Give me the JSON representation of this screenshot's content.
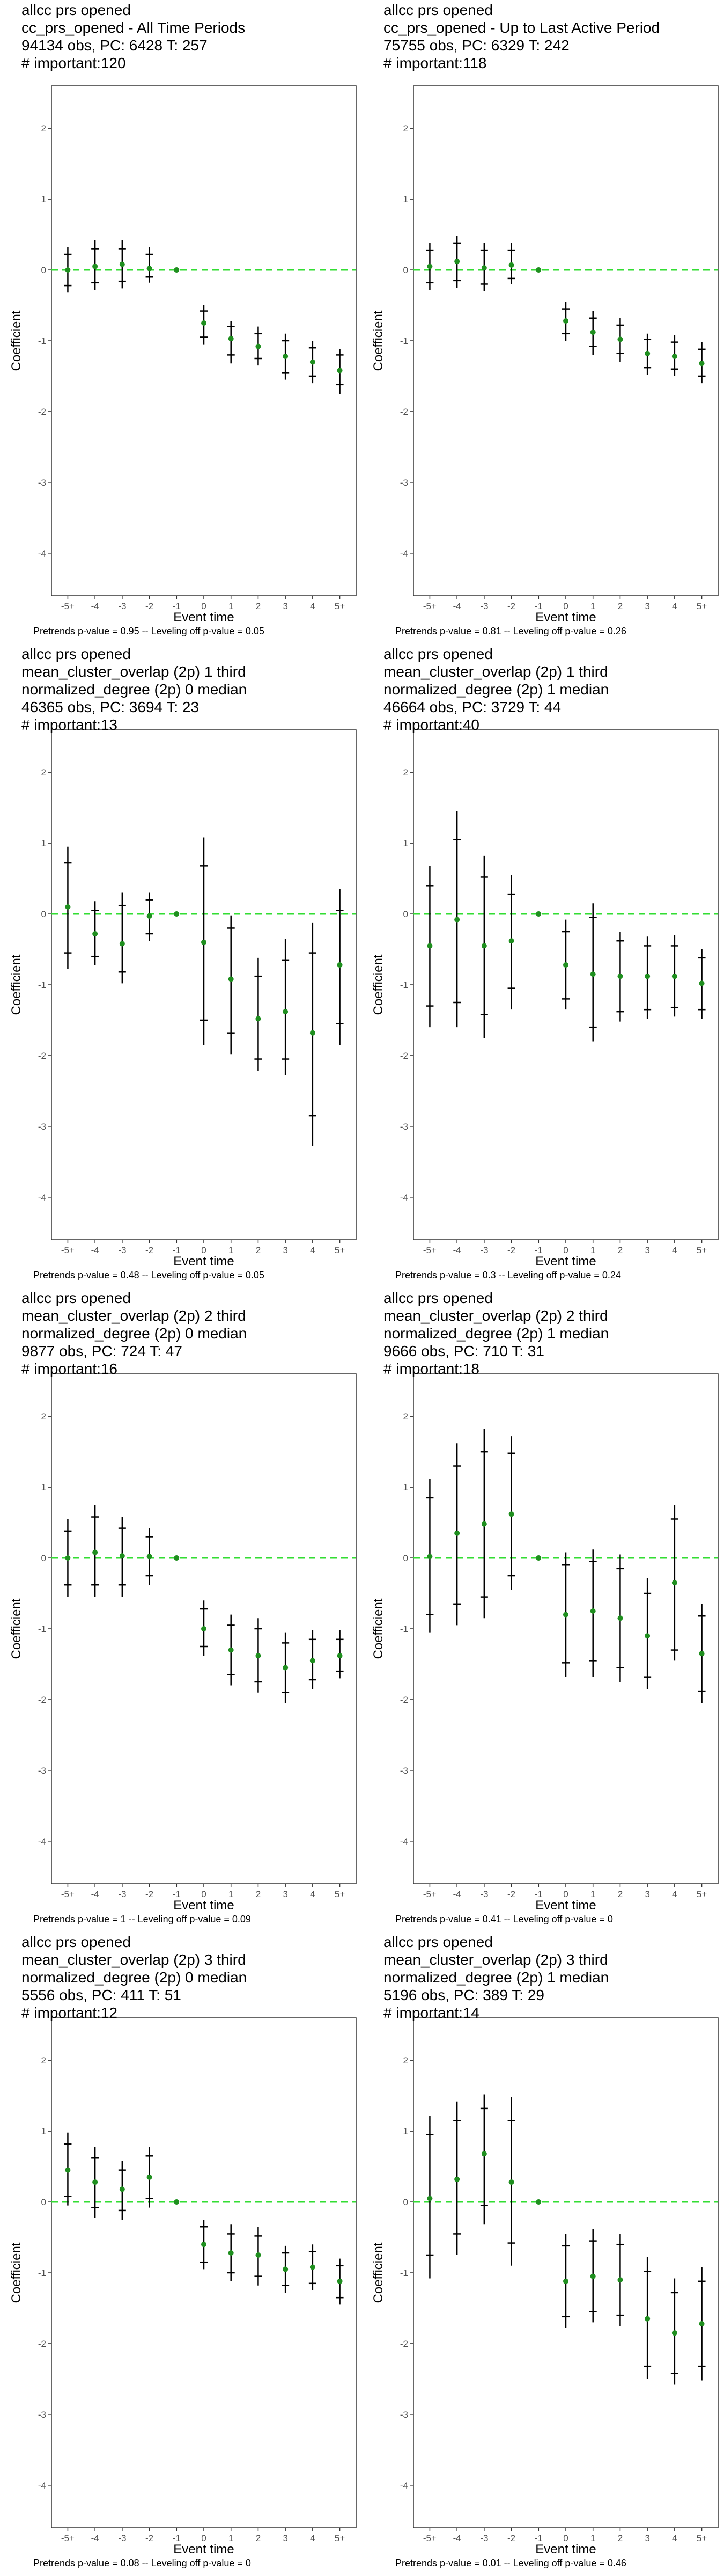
{
  "colors": {
    "point": "#1f8f1f",
    "zero_line": "#33dd33",
    "error_bar": "#000000",
    "axis": "#333333",
    "tick_label": "#4d4d4d"
  },
  "chart_data": [
    {
      "type": "scatter",
      "subtype": "event-study coefficient plot with confidence intervals",
      "title_lines": [
        "allcc prs opened",
        "cc_prs_opened - All Time Periods",
        "94134 obs, PC: 6428 T: 257",
        "# important:120"
      ],
      "xlabel": "Event time",
      "ylabel": "Coefficient",
      "categories": [
        "-5+",
        "-4",
        "-3",
        "-2",
        "-1",
        "0",
        "1",
        "2",
        "3",
        "4",
        "5+"
      ],
      "ylim": [
        -4.6,
        2.6
      ],
      "yticks": [
        -4,
        -3,
        -2,
        -1,
        0,
        1,
        2
      ],
      "reference_line": 0,
      "grid": false,
      "values": [
        0.0,
        0.05,
        0.08,
        0.02,
        0.0,
        -0.75,
        -0.97,
        -1.08,
        -1.22,
        -1.3,
        -1.42
      ],
      "ci_outer": [
        [
          -0.32,
          0.32
        ],
        [
          -0.28,
          0.42
        ],
        [
          -0.26,
          0.42
        ],
        [
          -0.18,
          0.32
        ],
        [
          0.0,
          0.0
        ],
        [
          -1.05,
          -0.5
        ],
        [
          -1.32,
          -0.72
        ],
        [
          -1.35,
          -0.8
        ],
        [
          -1.55,
          -0.9
        ],
        [
          -1.6,
          -1.0
        ],
        [
          -1.75,
          -1.12
        ]
      ],
      "ci_inner": [
        [
          -0.22,
          0.22
        ],
        [
          -0.18,
          0.3
        ],
        [
          -0.16,
          0.3
        ],
        [
          -0.1,
          0.22
        ],
        [
          0.0,
          0.0
        ],
        [
          -0.95,
          -0.58
        ],
        [
          -1.2,
          -0.8
        ],
        [
          -1.25,
          -0.9
        ],
        [
          -1.45,
          -1.0
        ],
        [
          -1.5,
          -1.1
        ],
        [
          -1.62,
          -1.2
        ]
      ],
      "caption": "Pretrends p-value = 0.95 -- Leveling off p-value = 0.05"
    },
    {
      "type": "scatter",
      "subtype": "event-study coefficient plot with confidence intervals",
      "title_lines": [
        "allcc prs opened",
        "cc_prs_opened - Up to Last Active Period",
        "75755 obs, PC: 6329 T: 242",
        "# important:118"
      ],
      "xlabel": "Event time",
      "ylabel": "Coefficient",
      "categories": [
        "-5+",
        "-4",
        "-3",
        "-2",
        "-1",
        "0",
        "1",
        "2",
        "3",
        "4",
        "5+"
      ],
      "ylim": [
        -4.6,
        2.6
      ],
      "yticks": [
        -4,
        -3,
        -2,
        -1,
        0,
        1,
        2
      ],
      "reference_line": 0,
      "grid": false,
      "values": [
        0.05,
        0.12,
        0.03,
        0.07,
        0.0,
        -0.72,
        -0.88,
        -0.98,
        -1.18,
        -1.22,
        -1.32
      ],
      "ci_outer": [
        [
          -0.28,
          0.38
        ],
        [
          -0.25,
          0.48
        ],
        [
          -0.3,
          0.38
        ],
        [
          -0.2,
          0.38
        ],
        [
          0.0,
          0.0
        ],
        [
          -1.0,
          -0.45
        ],
        [
          -1.2,
          -0.58
        ],
        [
          -1.3,
          -0.68
        ],
        [
          -1.48,
          -0.9
        ],
        [
          -1.5,
          -0.92
        ],
        [
          -1.6,
          -1.02
        ]
      ],
      "ci_inner": [
        [
          -0.18,
          0.28
        ],
        [
          -0.15,
          0.38
        ],
        [
          -0.2,
          0.28
        ],
        [
          -0.12,
          0.28
        ],
        [
          0.0,
          0.0
        ],
        [
          -0.9,
          -0.55
        ],
        [
          -1.08,
          -0.68
        ],
        [
          -1.18,
          -0.78
        ],
        [
          -1.38,
          -0.98
        ],
        [
          -1.4,
          -1.02
        ],
        [
          -1.5,
          -1.12
        ]
      ],
      "caption": "Pretrends p-value = 0.81 -- Leveling off p-value = 0.26"
    },
    {
      "type": "scatter",
      "subtype": "event-study coefficient plot with confidence intervals",
      "title_lines": [
        "allcc prs opened",
        "mean_cluster_overlap (2p) 1 third",
        "normalized_degree (2p) 0 median",
        "46365 obs, PC: 3694 T: 23",
        "# important:13"
      ],
      "xlabel": "Event time",
      "ylabel": "Coefficient",
      "categories": [
        "-5+",
        "-4",
        "-3",
        "-2",
        "-1",
        "0",
        "1",
        "2",
        "3",
        "4",
        "5+"
      ],
      "ylim": [
        -4.6,
        2.6
      ],
      "yticks": [
        -4,
        -3,
        -2,
        -1,
        0,
        1,
        2
      ],
      "reference_line": 0,
      "grid": false,
      "values": [
        0.1,
        -0.28,
        -0.42,
        -0.03,
        0.0,
        -0.4,
        -0.92,
        -1.48,
        -1.38,
        -1.68,
        -0.72
      ],
      "ci_outer": [
        [
          -0.78,
          0.95
        ],
        [
          -0.72,
          0.18
        ],
        [
          -0.98,
          0.3
        ],
        [
          -0.38,
          0.3
        ],
        [
          0.0,
          0.0
        ],
        [
          -1.85,
          1.08
        ],
        [
          -1.98,
          -0.02
        ],
        [
          -2.22,
          -0.62
        ],
        [
          -2.28,
          -0.35
        ],
        [
          -3.28,
          -0.12
        ],
        [
          -1.85,
          0.35
        ]
      ],
      "ci_inner": [
        [
          -0.55,
          0.72
        ],
        [
          -0.6,
          0.05
        ],
        [
          -0.82,
          0.12
        ],
        [
          -0.28,
          0.2
        ],
        [
          0.0,
          0.0
        ],
        [
          -1.5,
          0.68
        ],
        [
          -1.68,
          -0.2
        ],
        [
          -2.05,
          -0.88
        ],
        [
          -2.05,
          -0.65
        ],
        [
          -2.85,
          -0.55
        ],
        [
          -1.55,
          0.05
        ]
      ],
      "caption": "Pretrends p-value = 0.48 -- Leveling off p-value = 0.05"
    },
    {
      "type": "scatter",
      "subtype": "event-study coefficient plot with confidence intervals",
      "title_lines": [
        "allcc prs opened",
        "mean_cluster_overlap (2p) 1 third",
        "normalized_degree (2p) 1 median",
        "46664 obs, PC: 3729 T: 44",
        "# important:40"
      ],
      "xlabel": "Event time",
      "ylabel": "Coefficient",
      "categories": [
        "-5+",
        "-4",
        "-3",
        "-2",
        "-1",
        "0",
        "1",
        "2",
        "3",
        "4",
        "5+"
      ],
      "ylim": [
        -4.6,
        2.6
      ],
      "yticks": [
        -4,
        -3,
        -2,
        -1,
        0,
        1,
        2
      ],
      "reference_line": 0,
      "grid": false,
      "values": [
        -0.45,
        -0.08,
        -0.45,
        -0.38,
        0.0,
        -0.72,
        -0.85,
        -0.88,
        -0.88,
        -0.88,
        -0.98
      ],
      "ci_outer": [
        [
          -1.6,
          0.68
        ],
        [
          -1.6,
          1.45
        ],
        [
          -1.75,
          0.82
        ],
        [
          -1.35,
          0.55
        ],
        [
          0.0,
          0.0
        ],
        [
          -1.35,
          -0.08
        ],
        [
          -1.8,
          0.15
        ],
        [
          -1.52,
          -0.25
        ],
        [
          -1.48,
          -0.32
        ],
        [
          -1.45,
          -0.3
        ],
        [
          -1.48,
          -0.5
        ]
      ],
      "ci_inner": [
        [
          -1.3,
          0.4
        ],
        [
          -1.25,
          1.05
        ],
        [
          -1.42,
          0.52
        ],
        [
          -1.05,
          0.28
        ],
        [
          0.0,
          0.0
        ],
        [
          -1.2,
          -0.25
        ],
        [
          -1.6,
          -0.05
        ],
        [
          -1.38,
          -0.38
        ],
        [
          -1.35,
          -0.45
        ],
        [
          -1.32,
          -0.45
        ],
        [
          -1.35,
          -0.62
        ]
      ],
      "caption": "Pretrends p-value = 0.3 -- Leveling off p-value = 0.24"
    },
    {
      "type": "scatter",
      "subtype": "event-study coefficient plot with confidence intervals",
      "title_lines": [
        "allcc prs opened",
        "mean_cluster_overlap (2p) 2 third",
        "normalized_degree (2p) 0 median",
        "9877 obs, PC: 724 T: 47",
        "# important:16"
      ],
      "xlabel": "Event time",
      "ylabel": "Coefficient",
      "categories": [
        "-5+",
        "-4",
        "-3",
        "-2",
        "-1",
        "0",
        "1",
        "2",
        "3",
        "4",
        "5+"
      ],
      "ylim": [
        -4.6,
        2.6
      ],
      "yticks": [
        -4,
        -3,
        -2,
        -1,
        0,
        1,
        2
      ],
      "reference_line": 0,
      "grid": false,
      "values": [
        0.0,
        0.08,
        0.03,
        0.02,
        0.0,
        -1.0,
        -1.3,
        -1.38,
        -1.55,
        -1.45,
        -1.38
      ],
      "ci_outer": [
        [
          -0.55,
          0.55
        ],
        [
          -0.55,
          0.75
        ],
        [
          -0.55,
          0.58
        ],
        [
          -0.38,
          0.42
        ],
        [
          0.0,
          0.0
        ],
        [
          -1.38,
          -0.6
        ],
        [
          -1.8,
          -0.8
        ],
        [
          -1.9,
          -0.85
        ],
        [
          -2.05,
          -1.05
        ],
        [
          -1.85,
          -1.02
        ],
        [
          -1.7,
          -1.02
        ]
      ],
      "ci_inner": [
        [
          -0.38,
          0.38
        ],
        [
          -0.38,
          0.58
        ],
        [
          -0.38,
          0.42
        ],
        [
          -0.25,
          0.3
        ],
        [
          0.0,
          0.0
        ],
        [
          -1.25,
          -0.72
        ],
        [
          -1.65,
          -0.95
        ],
        [
          -1.75,
          -1.0
        ],
        [
          -1.9,
          -1.2
        ],
        [
          -1.72,
          -1.15
        ],
        [
          -1.6,
          -1.15
        ]
      ],
      "caption": "Pretrends p-value = 1 -- Leveling off p-value = 0.09"
    },
    {
      "type": "scatter",
      "subtype": "event-study coefficient plot with confidence intervals",
      "title_lines": [
        "allcc prs opened",
        "mean_cluster_overlap (2p) 2 third",
        "normalized_degree (2p) 1 median",
        "9666 obs, PC: 710 T: 31",
        "# important:18"
      ],
      "xlabel": "Event time",
      "ylabel": "Coefficient",
      "categories": [
        "-5+",
        "-4",
        "-3",
        "-2",
        "-1",
        "0",
        "1",
        "2",
        "3",
        "4",
        "5+"
      ],
      "ylim": [
        -4.6,
        2.6
      ],
      "yticks": [
        -4,
        -3,
        -2,
        -1,
        0,
        1,
        2
      ],
      "reference_line": 0,
      "grid": false,
      "values": [
        0.02,
        0.35,
        0.48,
        0.62,
        0.0,
        -0.8,
        -0.75,
        -0.85,
        -1.1,
        -0.35,
        -1.35
      ],
      "ci_outer": [
        [
          -1.05,
          1.12
        ],
        [
          -0.95,
          1.62
        ],
        [
          -0.85,
          1.82
        ],
        [
          -0.45,
          1.72
        ],
        [
          0.0,
          0.0
        ],
        [
          -1.68,
          0.08
        ],
        [
          -1.68,
          0.12
        ],
        [
          -1.75,
          0.05
        ],
        [
          -1.85,
          -0.28
        ],
        [
          -1.45,
          0.75
        ],
        [
          -2.05,
          -0.65
        ]
      ],
      "ci_inner": [
        [
          -0.8,
          0.85
        ],
        [
          -0.65,
          1.3
        ],
        [
          -0.55,
          1.5
        ],
        [
          -0.25,
          1.48
        ],
        [
          0.0,
          0.0
        ],
        [
          -1.48,
          -0.1
        ],
        [
          -1.45,
          -0.05
        ],
        [
          -1.55,
          -0.15
        ],
        [
          -1.68,
          -0.5
        ],
        [
          -1.3,
          0.55
        ],
        [
          -1.88,
          -0.82
        ]
      ],
      "caption": "Pretrends p-value = 0.41 -- Leveling off p-value = 0"
    },
    {
      "type": "scatter",
      "subtype": "event-study coefficient plot with confidence intervals",
      "title_lines": [
        "allcc prs opened",
        "mean_cluster_overlap (2p) 3 third",
        "normalized_degree (2p) 0 median",
        "5556 obs, PC: 411 T: 51",
        "# important:12"
      ],
      "xlabel": "Event time",
      "ylabel": "Coefficient",
      "categories": [
        "-5+",
        "-4",
        "-3",
        "-2",
        "-1",
        "0",
        "1",
        "2",
        "3",
        "4",
        "5+"
      ],
      "ylim": [
        -4.6,
        2.6
      ],
      "yticks": [
        -4,
        -3,
        -2,
        -1,
        0,
        1,
        2
      ],
      "reference_line": 0,
      "grid": false,
      "values": [
        0.45,
        0.28,
        0.18,
        0.35,
        0.0,
        -0.6,
        -0.72,
        -0.75,
        -0.95,
        -0.92,
        -1.12
      ],
      "ci_outer": [
        [
          -0.05,
          0.98
        ],
        [
          -0.22,
          0.78
        ],
        [
          -0.25,
          0.58
        ],
        [
          -0.08,
          0.78
        ],
        [
          0.0,
          0.0
        ],
        [
          -0.95,
          -0.25
        ],
        [
          -1.12,
          -0.32
        ],
        [
          -1.18,
          -0.35
        ],
        [
          -1.28,
          -0.62
        ],
        [
          -1.25,
          -0.6
        ],
        [
          -1.45,
          -0.8
        ]
      ],
      "ci_inner": [
        [
          0.08,
          0.82
        ],
        [
          -0.08,
          0.62
        ],
        [
          -0.12,
          0.45
        ],
        [
          0.05,
          0.65
        ],
        [
          0.0,
          0.0
        ],
        [
          -0.85,
          -0.35
        ],
        [
          -1.0,
          -0.45
        ],
        [
          -1.05,
          -0.48
        ],
        [
          -1.18,
          -0.72
        ],
        [
          -1.15,
          -0.7
        ],
        [
          -1.35,
          -0.9
        ]
      ],
      "caption": "Pretrends p-value = 0.08 -- Leveling off p-value = 0"
    },
    {
      "type": "scatter",
      "subtype": "event-study coefficient plot with confidence intervals",
      "title_lines": [
        "allcc prs opened",
        "mean_cluster_overlap (2p) 3 third",
        "normalized_degree (2p) 1 median",
        "5196 obs, PC: 389 T: 29",
        "# important:14"
      ],
      "xlabel": "Event time",
      "ylabel": "Coefficient",
      "categories": [
        "-5+",
        "-4",
        "-3",
        "-2",
        "-1",
        "0",
        "1",
        "2",
        "3",
        "4",
        "5+"
      ],
      "ylim": [
        -4.6,
        2.6
      ],
      "yticks": [
        -4,
        -3,
        -2,
        -1,
        0,
        1,
        2
      ],
      "reference_line": 0,
      "grid": false,
      "values": [
        0.05,
        0.32,
        0.68,
        0.28,
        0.0,
        -1.12,
        -1.05,
        -1.1,
        -1.65,
        -1.85,
        -1.72
      ],
      "ci_outer": [
        [
          -1.08,
          1.22
        ],
        [
          -0.75,
          1.42
        ],
        [
          -0.32,
          1.52
        ],
        [
          -0.9,
          1.48
        ],
        [
          0.0,
          0.0
        ],
        [
          -1.78,
          -0.45
        ],
        [
          -1.7,
          -0.38
        ],
        [
          -1.75,
          -0.45
        ],
        [
          -2.5,
          -0.78
        ],
        [
          -2.58,
          -1.08
        ],
        [
          -2.52,
          -0.92
        ]
      ],
      "ci_inner": [
        [
          -0.75,
          0.95
        ],
        [
          -0.45,
          1.15
        ],
        [
          -0.05,
          1.32
        ],
        [
          -0.58,
          1.15
        ],
        [
          0.0,
          0.0
        ],
        [
          -1.62,
          -0.62
        ],
        [
          -1.55,
          -0.55
        ],
        [
          -1.6,
          -0.6
        ],
        [
          -2.32,
          -0.98
        ],
        [
          -2.42,
          -1.28
        ],
        [
          -2.32,
          -1.12
        ]
      ],
      "caption": "Pretrends p-value = 0.01 -- Leveling off p-value = 0.46"
    }
  ]
}
